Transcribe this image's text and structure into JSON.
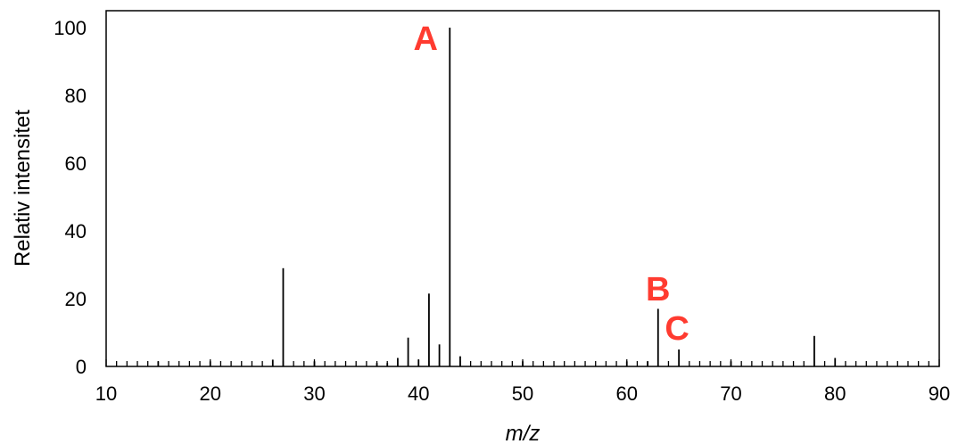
{
  "chart_data": {
    "type": "bar",
    "title": "",
    "xlabel": "m/z",
    "ylabel": "Relativ intensitet",
    "xlim": [
      10,
      90
    ],
    "ylim": [
      0,
      100
    ],
    "x_ticks": [
      "10",
      "20",
      "30",
      "40",
      "50",
      "60",
      "70",
      "80",
      "90"
    ],
    "y_ticks": [
      "0",
      "20",
      "40",
      "60",
      "80",
      "100"
    ],
    "grid": false,
    "peaks": {
      "x": [
        15,
        20,
        26,
        27,
        30,
        36,
        37,
        38,
        39,
        40,
        41,
        42,
        43,
        44,
        50,
        60,
        62,
        63,
        65,
        70,
        78,
        80
      ],
      "y": [
        1.5,
        1.5,
        2,
        29,
        1.5,
        1,
        1,
        2.5,
        8.5,
        2,
        21.5,
        6.5,
        100,
        3,
        1.5,
        1.5,
        1.5,
        17,
        5,
        1.5,
        9,
        2.5
      ]
    },
    "annotations": [
      {
        "text": "A",
        "x": 43,
        "y": 100
      },
      {
        "text": "B",
        "x": 63,
        "y": 17
      },
      {
        "text": "C",
        "x": 65,
        "y": 5
      }
    ],
    "colors": {
      "peaks": "#000000",
      "annotation": "#ff3b30"
    }
  }
}
